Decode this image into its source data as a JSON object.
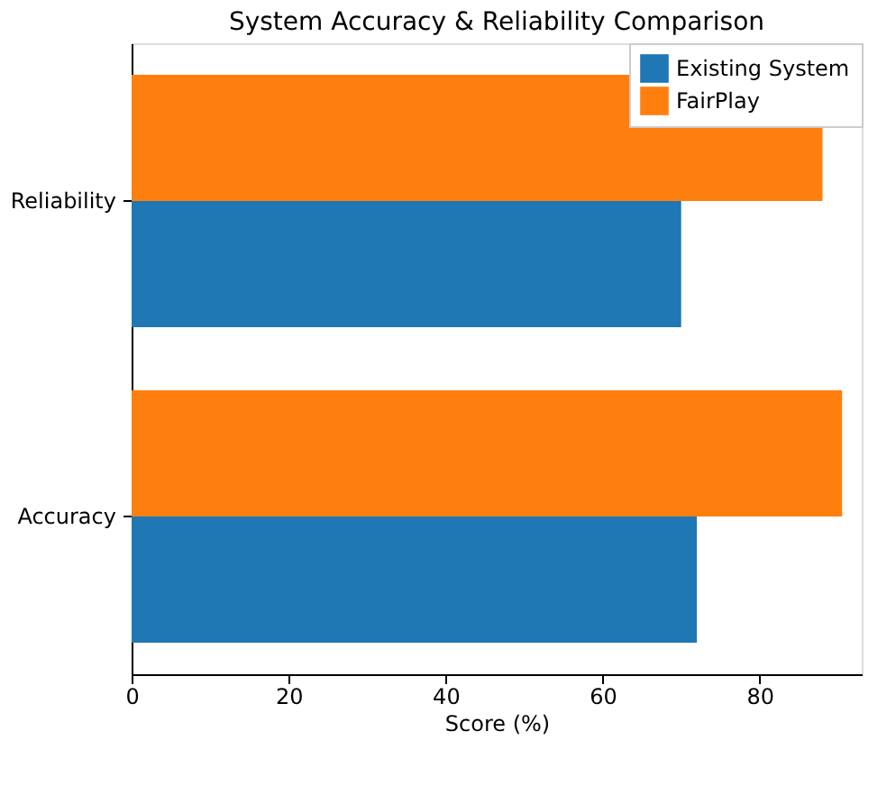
{
  "chart_data": {
    "type": "bar",
    "orientation": "horizontal",
    "title": "System Accuracy & Reliability Comparison",
    "xlabel": "Score (%)",
    "categories": [
      "Reliability",
      "Accuracy"
    ],
    "series": [
      {
        "name": "Existing System",
        "color": "#1f77b4",
        "values": [
          70,
          72
        ]
      },
      {
        "name": "FairPlay",
        "color": "#ff7f0e",
        "values": [
          88,
          90.5
        ]
      }
    ],
    "xlim": [
      0,
      93
    ],
    "xticks": [
      0,
      20,
      40,
      60,
      80
    ],
    "grid": false,
    "legend": "top right"
  }
}
